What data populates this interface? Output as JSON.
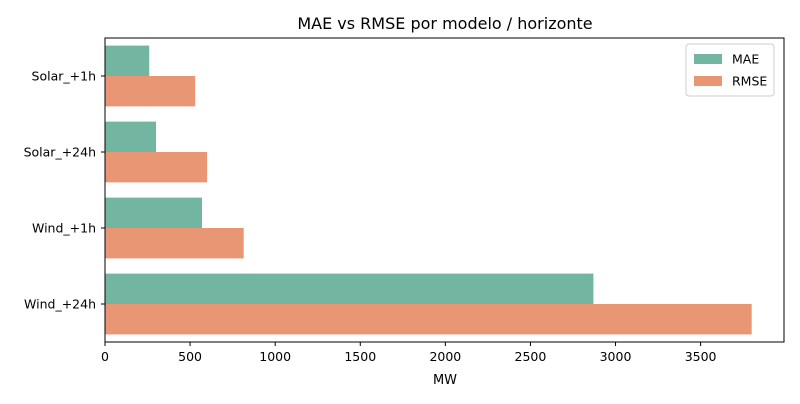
{
  "chart_data": {
    "type": "bar",
    "orientation": "horizontal",
    "title": "MAE vs RMSE por modelo / horizonte",
    "xlabel": "MW",
    "ylabel": "",
    "categories": [
      "Solar_+1h",
      "Solar_+24h",
      "Wind_+1h",
      "Wind_+24h"
    ],
    "series": [
      {
        "name": "MAE",
        "color": "#72b6a1",
        "values": [
          260,
          300,
          570,
          2870
        ]
      },
      {
        "name": "RMSE",
        "color": "#e99675",
        "values": [
          530,
          600,
          815,
          3800
        ]
      }
    ],
    "xlim": [
      0,
      3990
    ],
    "xticks": [
      "0",
      "500",
      "1000",
      "1500",
      "2000",
      "2500",
      "3000",
      "3500"
    ],
    "grid": false,
    "legend_position": "top-right"
  }
}
